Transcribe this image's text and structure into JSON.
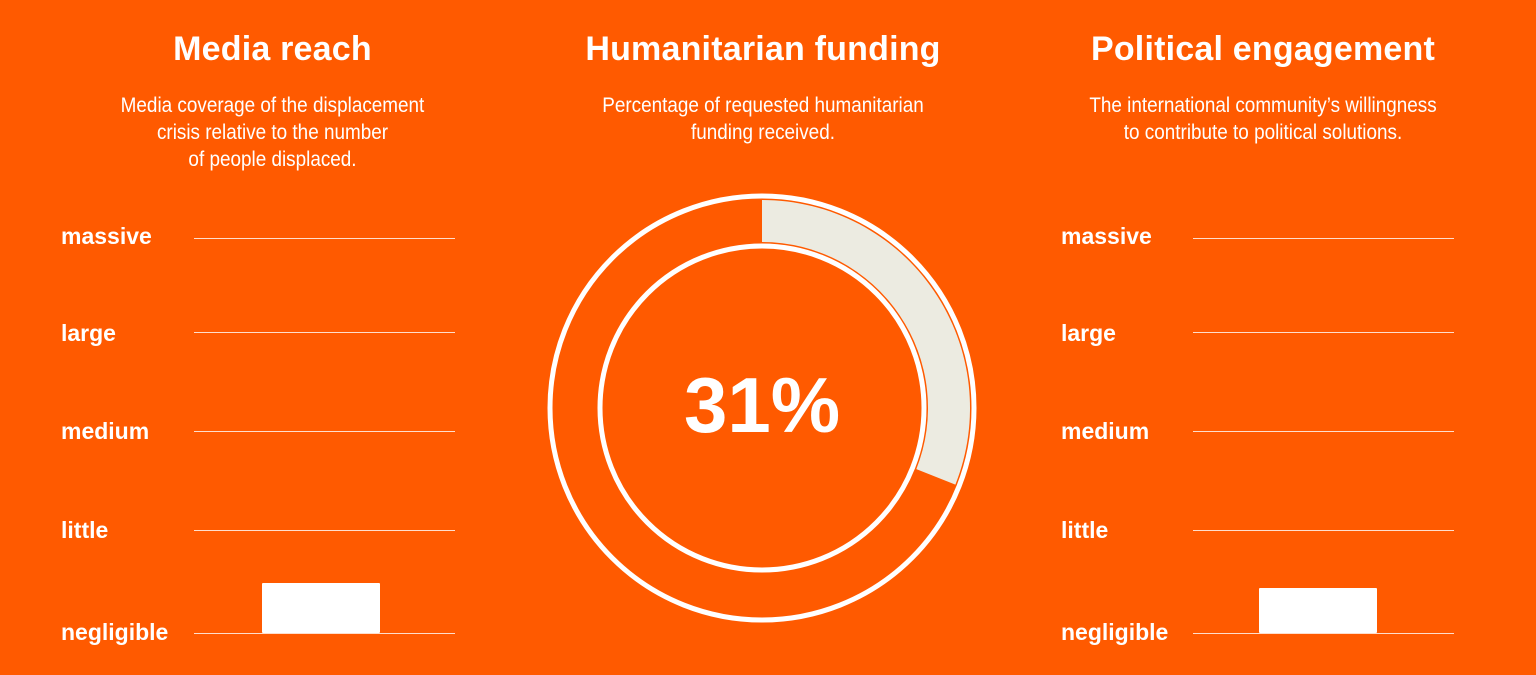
{
  "colors": {
    "background": "#ff5a00",
    "foreground": "#ffffff",
    "fill": "#ecebe1"
  },
  "chart_data": [
    {
      "type": "bar",
      "title": "Media reach",
      "subtitle": "Media coverage of the displacement crisis relative to the number of people displaced.",
      "subtitle_lines": [
        "Media coverage of the displacement",
        "crisis relative to the number",
        "of people displaced."
      ],
      "levels": [
        "massive",
        "large",
        "medium",
        "little",
        "negligible"
      ],
      "values": [
        "negligible"
      ],
      "bar_level": 0.5
    },
    {
      "type": "pie",
      "title": "Humanitarian funding",
      "subtitle": "Percentage of requested humanitarian funding received.",
      "subtitle_lines": [
        "Percentage of requested humanitarian",
        "funding received."
      ],
      "value": 31,
      "value_label": "31%"
    },
    {
      "type": "bar",
      "title": "Political engagement",
      "subtitle": "The international community’s willingness to contribute to political solutions.",
      "subtitle_lines": [
        "The international community’s willingness",
        "to contribute to political solutions."
      ],
      "levels": [
        "massive",
        "large",
        "medium",
        "little",
        "negligible"
      ],
      "values": [
        "negligible"
      ],
      "bar_level": 0.45
    }
  ]
}
